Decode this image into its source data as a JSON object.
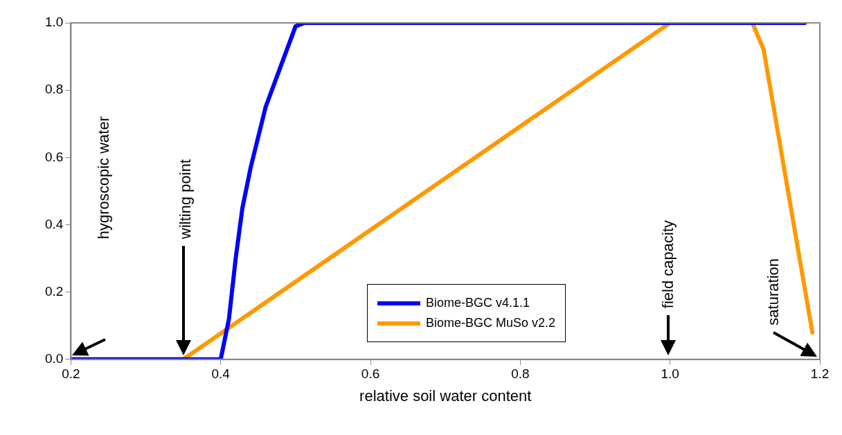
{
  "chart_data": {
    "type": "line",
    "xlabel": "relative soil water content",
    "xlim": [
      0.2,
      1.2
    ],
    "xticks": [
      0.2,
      0.4,
      0.6,
      0.8,
      {
        "value": 1,
        "label": "1.0"
      },
      1.2
    ],
    "ylim": [
      0,
      1
    ],
    "yticks": [
      {
        "value": 0,
        "label": "0.0"
      },
      0.2,
      0.4,
      0.6,
      0.8,
      {
        "value": 1,
        "label": "1.0"
      }
    ],
    "grid": false,
    "legend": "bottom",
    "marker": "none",
    "line_style": "solid",
    "series": [
      {
        "name": "Biome-BGC v4.1.1",
        "color": "#0000ff",
        "x": [
          0.2,
          0.4,
          0.411,
          0.42,
          0.429,
          0.44,
          0.46,
          0.48,
          0.5,
          0.512,
          1.18
        ],
        "values": [
          0,
          0,
          0.12,
          0.3,
          0.45,
          0.57,
          0.75,
          0.87,
          0.99,
          1,
          1
        ]
      },
      {
        "name": "Biome-BGC MuSo v2.2",
        "color": "#ff9900",
        "x": [
          0.2,
          0.35,
          1.0,
          1.11,
          1.125,
          1.19
        ],
        "values": [
          0,
          0,
          1,
          1,
          0.92,
          0.08
        ]
      }
    ],
    "annotations": [
      "hygroscopic water",
      "wilting point",
      "field capacity",
      "saturation"
    ]
  }
}
